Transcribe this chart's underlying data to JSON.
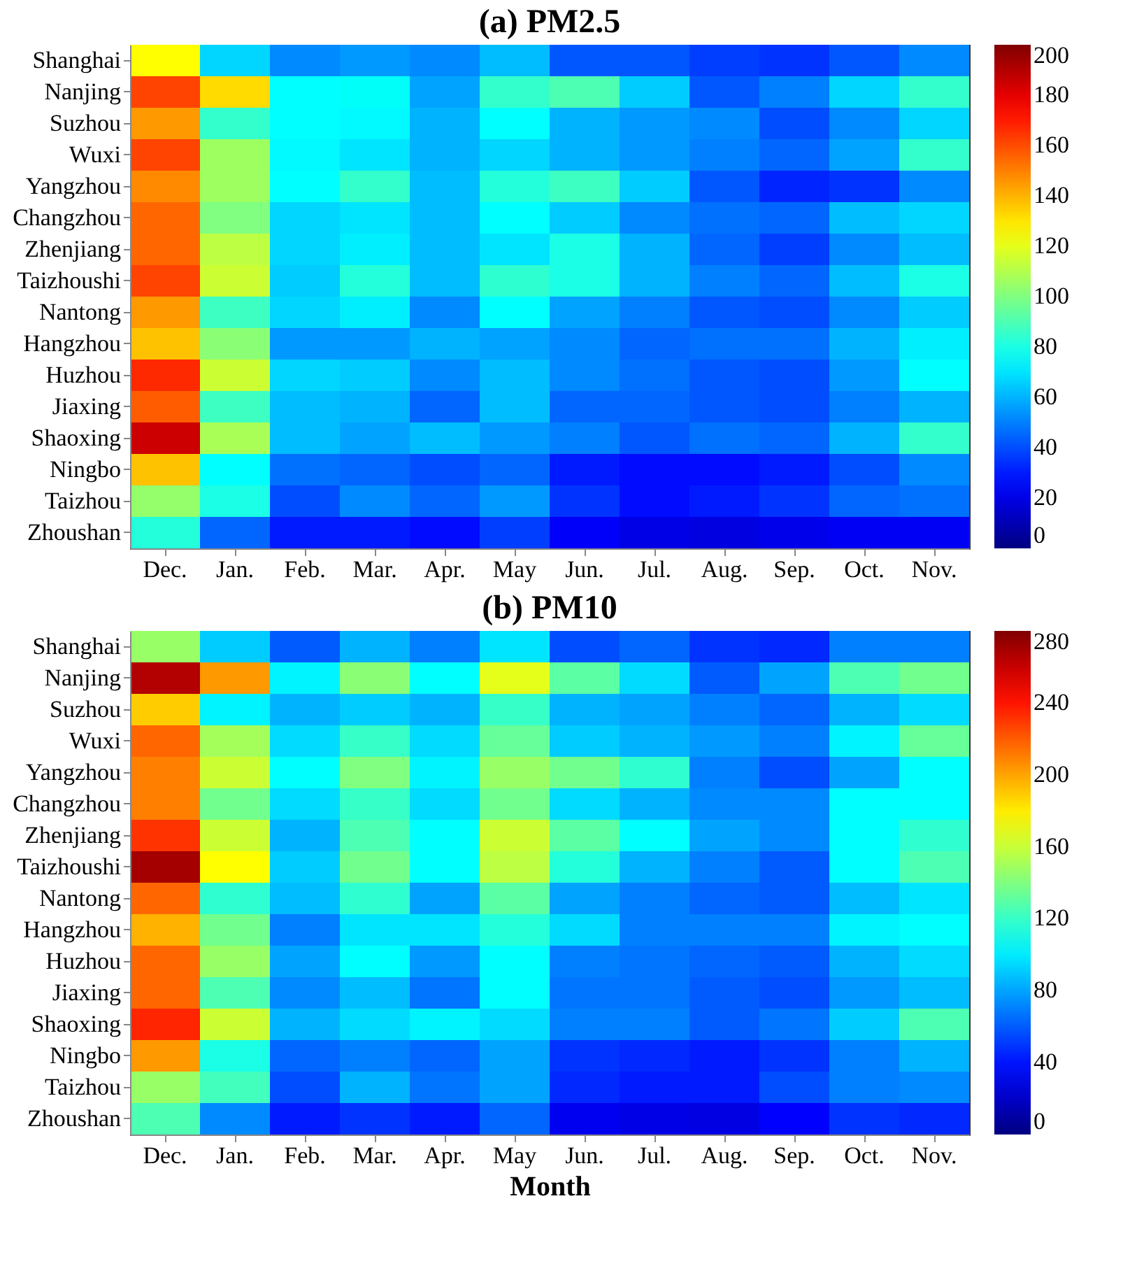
{
  "chart_data": [
    {
      "type": "heatmap",
      "title": "(a) PM2.5",
      "categories": [
        "Dec.",
        "Jan.",
        "Feb.",
        "Mar.",
        "Apr.",
        "May",
        "Jun.",
        "Jul.",
        "Aug.",
        "Sep.",
        "Oct.",
        "Nov."
      ],
      "y_categories": [
        "Shanghai",
        "Nanjing",
        "Suzhou",
        "Wuxi",
        "Yangzhou",
        "Changzhou",
        "Zhenjiang",
        "Taizhoushi",
        "Nantong",
        "Hangzhou",
        "Huzhou",
        "Jiaxing",
        "Shaoxing",
        "Ningbo",
        "Taizhou",
        "Zhoushan"
      ],
      "clim": [
        0,
        200
      ],
      "cticks": [
        0,
        20,
        40,
        60,
        80,
        100,
        120,
        140,
        160,
        180,
        200
      ],
      "cells": [
        [
          125,
          67,
          52,
          55,
          52,
          62,
          42,
          42,
          37,
          35,
          42,
          52
        ],
        [
          162,
          132,
          75,
          76,
          57,
          85,
          90,
          65,
          42,
          50,
          67,
          85
        ],
        [
          145,
          85,
          75,
          74,
          60,
          75,
          60,
          55,
          52,
          40,
          52,
          67
        ],
        [
          162,
          106,
          74,
          70,
          60,
          67,
          60,
          55,
          50,
          45,
          57,
          85
        ],
        [
          148,
          106,
          75,
          85,
          62,
          82,
          87,
          65,
          42,
          32,
          35,
          52
        ],
        [
          155,
          100,
          67,
          70,
          62,
          75,
          65,
          52,
          47,
          45,
          62,
          67
        ],
        [
          155,
          112,
          67,
          72,
          62,
          70,
          80,
          60,
          45,
          37,
          52,
          62
        ],
        [
          162,
          115,
          65,
          82,
          62,
          84,
          80,
          60,
          50,
          45,
          62,
          80
        ],
        [
          145,
          87,
          67,
          72,
          52,
          75,
          57,
          50,
          42,
          40,
          52,
          65
        ],
        [
          137,
          102,
          55,
          55,
          60,
          57,
          52,
          45,
          47,
          47,
          60,
          72
        ],
        [
          167,
          115,
          67,
          65,
          52,
          62,
          52,
          47,
          42,
          40,
          55,
          75
        ],
        [
          157,
          87,
          62,
          60,
          45,
          62,
          45,
          45,
          42,
          40,
          50,
          60
        ],
        [
          185,
          108,
          62,
          57,
          62,
          55,
          50,
          42,
          47,
          45,
          60,
          85
        ],
        [
          137,
          75,
          47,
          45,
          40,
          45,
          30,
          27,
          27,
          30,
          40,
          52
        ],
        [
          104,
          80,
          40,
          52,
          45,
          55,
          35,
          27,
          30,
          35,
          45,
          47
        ],
        [
          82,
          45,
          30,
          30,
          27,
          37,
          24,
          20,
          19,
          21,
          23,
          23
        ]
      ]
    },
    {
      "type": "heatmap",
      "title": "(b) PM10",
      "xlabel": "Month",
      "categories": [
        "Dec.",
        "Jan.",
        "Feb.",
        "Mar.",
        "Apr.",
        "May",
        "Jun.",
        "Jul.",
        "Aug.",
        "Sep.",
        "Oct.",
        "Nov."
      ],
      "y_categories": [
        "Shanghai",
        "Nanjing",
        "Suzhou",
        "Wuxi",
        "Yangzhou",
        "Changzhou",
        "Zhenjiang",
        "Taizhoushi",
        "Nantong",
        "Hangzhou",
        "Huzhou",
        "Jiaxing",
        "Shaoxing",
        "Ningbo",
        "Taizhou",
        "Zhoushan"
      ],
      "clim": [
        0,
        280
      ],
      "cticks": [
        0,
        40,
        80,
        120,
        160,
        200,
        240,
        280
      ],
      "cells": [
        [
          147,
          91,
          60,
          84,
          70,
          98,
          56,
          63,
          49,
          46,
          70,
          70
        ],
        [
          266,
          203,
          102,
          143,
          105,
          168,
          130,
          95,
          60,
          80,
          126,
          136
        ],
        [
          189,
          102,
          84,
          91,
          84,
          120,
          84,
          80,
          70,
          63,
          84,
          95
        ],
        [
          217,
          150,
          95,
          120,
          95,
          133,
          91,
          84,
          77,
          70,
          102,
          133
        ],
        [
          210,
          161,
          105,
          140,
          102,
          147,
          136,
          118,
          70,
          56,
          80,
          105
        ],
        [
          210,
          136,
          95,
          120,
          95,
          136,
          95,
          84,
          73,
          73,
          105,
          105
        ],
        [
          231,
          161,
          84,
          126,
          105,
          161,
          130,
          105,
          80,
          73,
          105,
          118
        ],
        [
          270,
          175,
          91,
          136,
          105,
          157,
          115,
          84,
          70,
          60,
          105,
          126
        ],
        [
          217,
          118,
          87,
          118,
          80,
          130,
          80,
          70,
          63,
          60,
          87,
          98
        ],
        [
          196,
          136,
          70,
          98,
          98,
          115,
          95,
          70,
          70,
          70,
          102,
          105
        ],
        [
          217,
          147,
          80,
          105,
          77,
          105,
          70,
          67,
          63,
          60,
          84,
          95
        ],
        [
          217,
          126,
          73,
          87,
          67,
          105,
          67,
          67,
          60,
          56,
          77,
          87
        ],
        [
          235,
          161,
          84,
          95,
          102,
          95,
          70,
          70,
          60,
          67,
          91,
          126
        ],
        [
          203,
          112,
          63,
          70,
          63,
          80,
          49,
          46,
          42,
          49,
          70,
          84
        ],
        [
          147,
          123,
          56,
          84,
          67,
          80,
          46,
          42,
          42,
          56,
          70,
          73
        ],
        [
          126,
          73,
          42,
          49,
          42,
          63,
          31,
          28,
          27,
          35,
          49,
          46
        ]
      ]
    }
  ]
}
